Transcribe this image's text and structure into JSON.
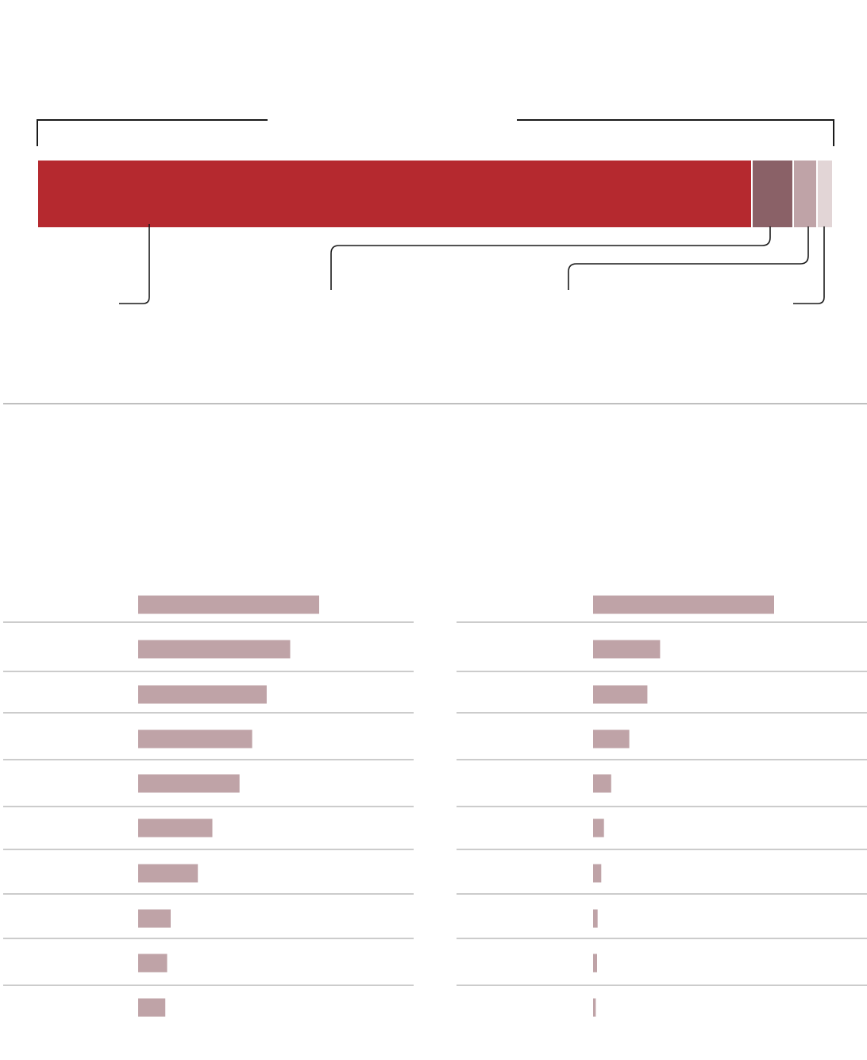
{
  "colors": {
    "primary": "#b5292f",
    "secondary": "#8a6167",
    "tertiary": "#bfa3a7",
    "quaternary": "#e2d5d6",
    "bar": "#bfa3a7",
    "line": "#1a1a1a",
    "rule": "#999999"
  },
  "chart_data": [
    {
      "type": "bar",
      "stacked": true,
      "orientation": "horizontal",
      "values_unit": "percent",
      "segments": [
        {
          "color": "#b5292f",
          "value": 90.0
        },
        {
          "color": "#8a6167",
          "value": 5.2
        },
        {
          "color": "#bfa3a7",
          "value": 3.0
        },
        {
          "color": "#e2d5d6",
          "value": 1.8
        }
      ]
    },
    {
      "type": "bar",
      "orientation": "horizontal",
      "values": [
        100,
        84,
        71,
        63,
        56,
        41,
        33,
        18,
        16,
        15
      ]
    },
    {
      "type": "bar",
      "orientation": "horizontal",
      "values": [
        100,
        37,
        30,
        20,
        10,
        6,
        4.5,
        2.5,
        2.2,
        1.5
      ]
    }
  ]
}
